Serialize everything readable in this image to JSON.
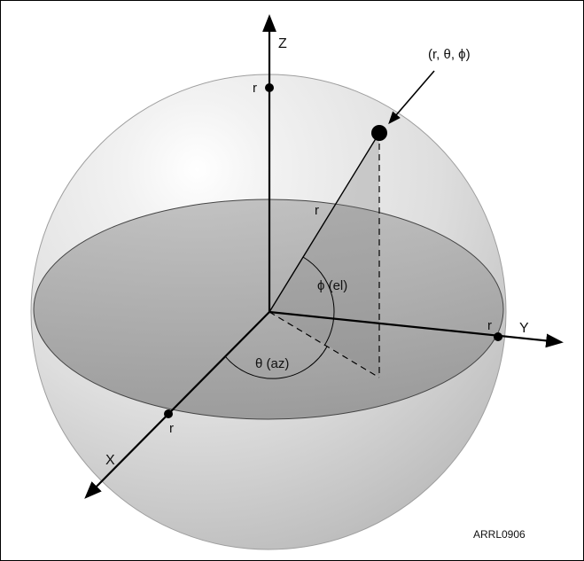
{
  "diagram": {
    "point_label": "(r, θ, ϕ)",
    "axis_z": "Z",
    "axis_y": "Y",
    "axis_x": "X",
    "radius_z": "r",
    "radius_point": "r",
    "radius_y": "r",
    "radius_x": "r",
    "elevation_label": "ϕ (el)",
    "azimuth_label": "θ (az)",
    "figure_id": "ARRL0906"
  },
  "colors": {
    "sphere_center": "#ffffff",
    "sphere_mid": "#e4e4e4",
    "sphere_edge": "#bdbdbd",
    "equator_plane": "#9a9a9a",
    "line": "#000000"
  }
}
